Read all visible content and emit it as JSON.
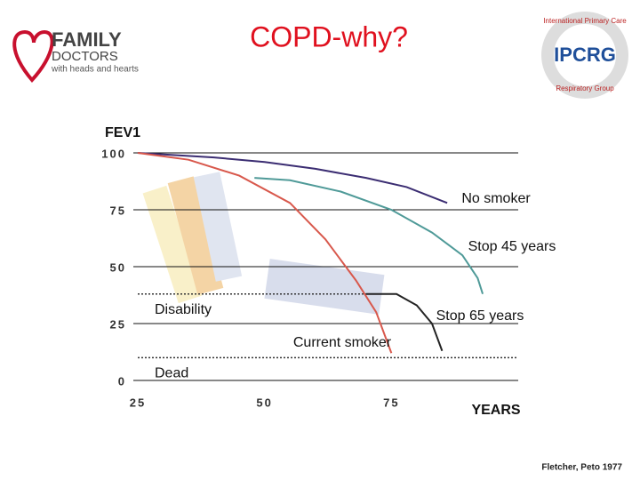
{
  "header": {
    "title": "COPD-why?",
    "left_logo": {
      "line1": "FAMILY",
      "line2": "DOCTORS",
      "line3": "with heads and hearts"
    },
    "right_logo": {
      "name": "IPCRG",
      "ring_top": "International Primary Care",
      "ring_bottom": "Respiratory Group"
    }
  },
  "chart_data": {
    "type": "line",
    "ylabel": "FEV1",
    "xlabel": "YEARS",
    "xlim": [
      25,
      100
    ],
    "xticks": [
      25,
      50,
      75
    ],
    "ylim": [
      0,
      100
    ],
    "yticks": [
      0,
      25,
      50,
      75,
      100
    ],
    "grid": true,
    "series": [
      {
        "name": "No smoker",
        "color": "#3b2d72",
        "x": [
          25,
          40,
          50,
          60,
          70,
          78,
          86
        ],
        "values": [
          100,
          98,
          96,
          93,
          89,
          85,
          78
        ]
      },
      {
        "name": "Stop 45 years",
        "color": "#4f9a98",
        "x": [
          48,
          55,
          65,
          75,
          83,
          89,
          92,
          93
        ],
        "values": [
          89,
          88,
          83,
          75,
          65,
          55,
          45,
          38
        ]
      },
      {
        "name": "Current smoker",
        "color": "#d8584c",
        "x": [
          25,
          35,
          45,
          55,
          62,
          68,
          72,
          75
        ],
        "values": [
          100,
          97,
          90,
          78,
          62,
          44,
          30,
          12
        ]
      },
      {
        "name": "Stop 65 years",
        "color": "#222222",
        "x": [
          70,
          76,
          80,
          83,
          85
        ],
        "values": [
          38,
          38,
          33,
          25,
          13
        ]
      }
    ],
    "thresholds": [
      {
        "label": "Disability",
        "value": 38
      },
      {
        "label": "Dead",
        "value": 10
      }
    ]
  },
  "footer": {
    "source": "Fletcher, Peto 1977"
  }
}
